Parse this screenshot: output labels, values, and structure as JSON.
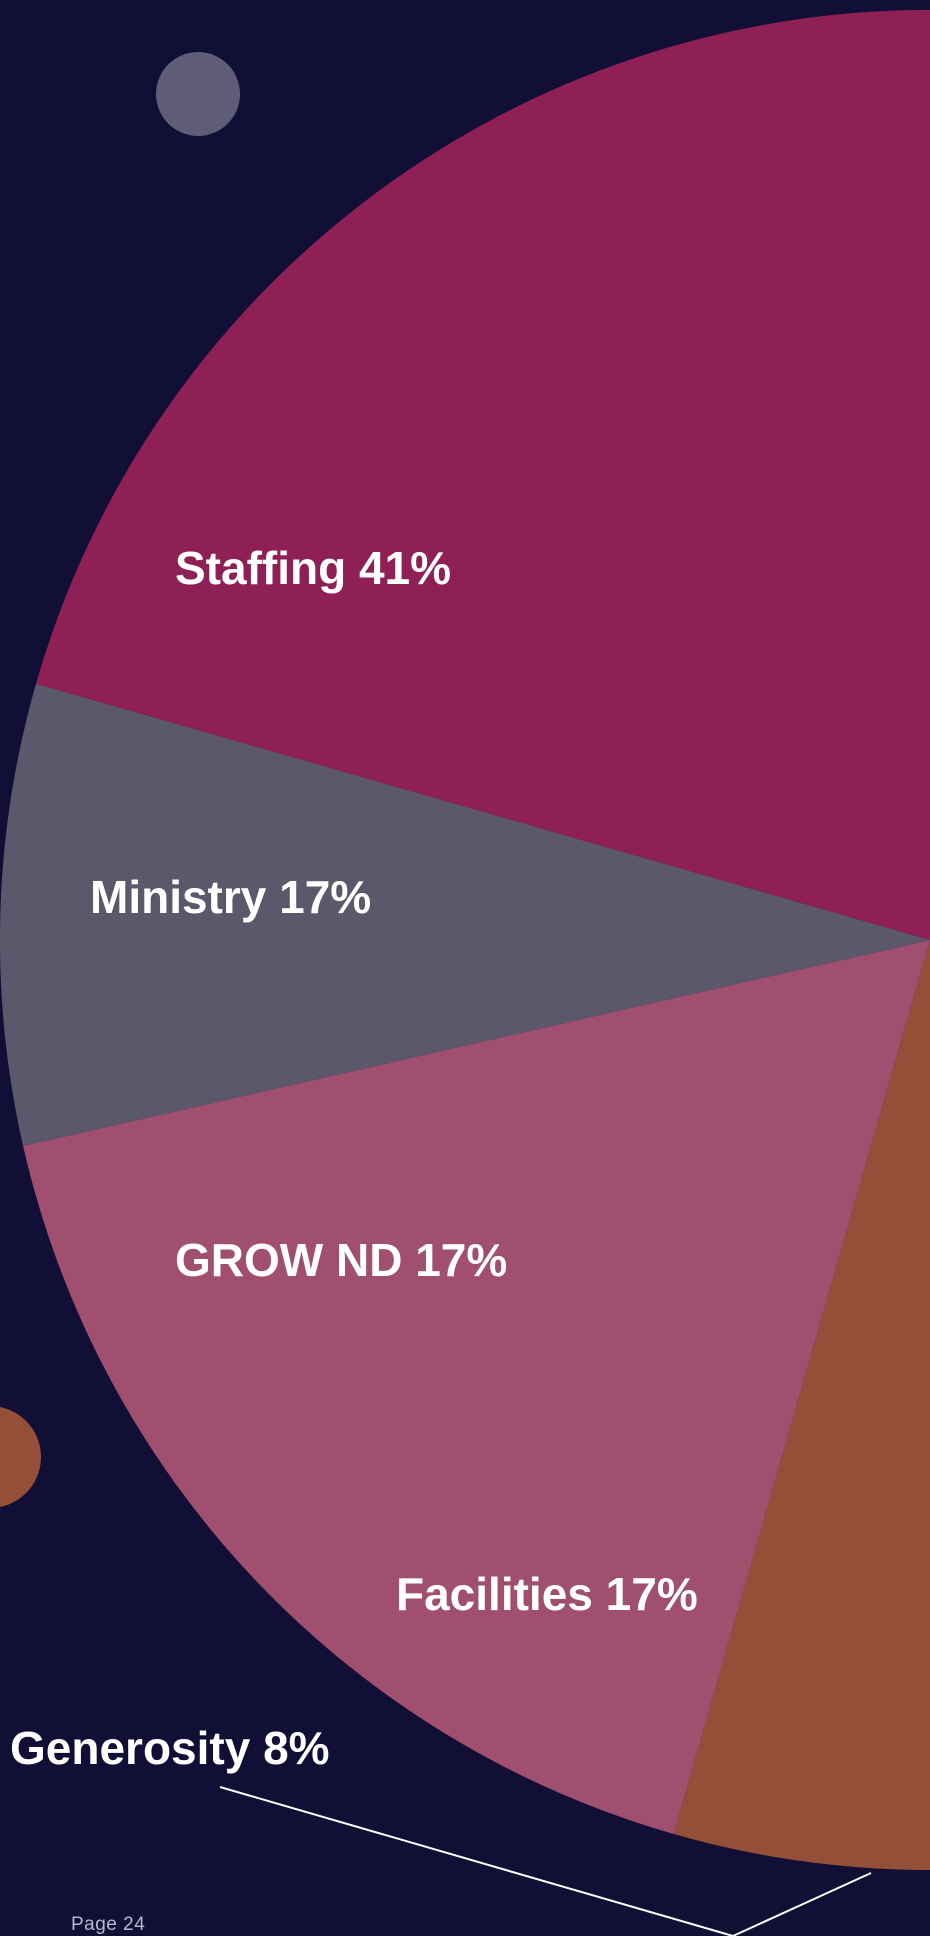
{
  "page": {
    "number_text": "Page 24"
  },
  "chart_data": {
    "type": "pie",
    "slices": [
      {
        "label": "Staffing 41%",
        "value": 41,
        "color": "#8f2056"
      },
      {
        "label": "Ministry 17%",
        "value": 17,
        "color": "#f08a6e"
      },
      {
        "label": "GROW ND 17%",
        "value": 17,
        "color": "#944f39"
      },
      {
        "label": "Facilities 17%",
        "value": 17,
        "color": "#a04f6e"
      },
      {
        "label": "Generosity 8%",
        "value": 8,
        "color": "#5b586c"
      }
    ],
    "background_color": "#110f35",
    "decor_colors": [
      "#5e5c76",
      "#944f39"
    ]
  }
}
